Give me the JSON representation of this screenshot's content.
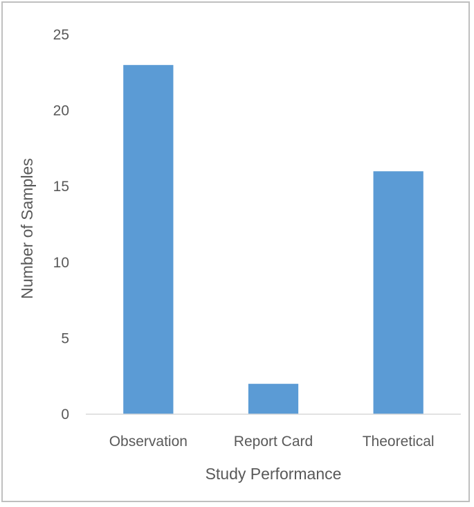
{
  "chart_data": {
    "type": "bar",
    "title": "",
    "xlabel": "Study Performance",
    "ylabel": "Number of Samples",
    "categories": [
      "Observation",
      "Report Card",
      "Theoretical"
    ],
    "values": [
      23,
      2,
      16
    ],
    "ylim": [
      0,
      25
    ],
    "yticks": [
      0,
      5,
      10,
      15,
      20,
      25
    ],
    "grid": false,
    "legend": "none",
    "bar_color": "#5b9bd5",
    "axis_color": "#d9d9d9",
    "text_color": "#595959"
  }
}
